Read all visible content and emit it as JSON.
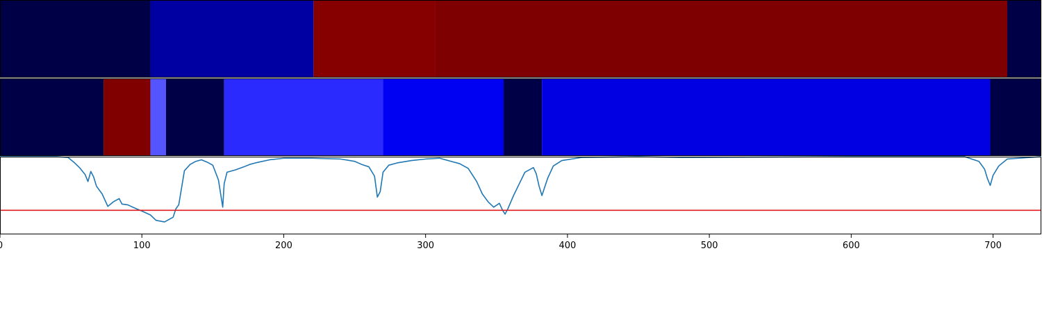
{
  "chart_data": {
    "type": "heatmap",
    "title": "",
    "xlabel": "",
    "ylabel": "",
    "xlim": [
      0,
      734
    ],
    "xticks": [
      0,
      100,
      200,
      300,
      400,
      500,
      600,
      700
    ],
    "tick_labels": [
      "0",
      "100",
      "200",
      "300",
      "400",
      "500",
      "600",
      "700"
    ],
    "segment_tracks": [
      {
        "segments": [
          {
            "start": 0,
            "end": 106,
            "color": "#000046"
          },
          {
            "start": 106,
            "end": 221,
            "color": "#0000a2"
          },
          {
            "start": 221,
            "end": 307,
            "color": "#870000"
          },
          {
            "start": 307,
            "end": 710,
            "color": "#7f0000"
          },
          {
            "start": 710,
            "end": 734,
            "color": "#000046"
          }
        ]
      },
      {
        "segments": [
          {
            "start": 0,
            "end": 73,
            "color": "#000046"
          },
          {
            "start": 73,
            "end": 106,
            "color": "#800000"
          },
          {
            "start": 106,
            "end": 117,
            "color": "#5555ff"
          },
          {
            "start": 117,
            "end": 158,
            "color": "#000046"
          },
          {
            "start": 158,
            "end": 270,
            "color": "#2a2aff"
          },
          {
            "start": 270,
            "end": 355,
            "color": "#0000f2"
          },
          {
            "start": 355,
            "end": 382,
            "color": "#000046"
          },
          {
            "start": 382,
            "end": 698,
            "color": "#0000e2"
          },
          {
            "start": 698,
            "end": 734,
            "color": "#000046"
          }
        ]
      }
    ],
    "line_series": {
      "color": "#1f77b4",
      "ylim": [
        0,
        1
      ],
      "threshold": 0.31,
      "threshold_color": "#e31a1c",
      "x": [
        0,
        20,
        40,
        48,
        52,
        56,
        60,
        62,
        64,
        66,
        68,
        72,
        76,
        80,
        84,
        86,
        90,
        96,
        100,
        106,
        110,
        116,
        122,
        124,
        126,
        130,
        134,
        138,
        142,
        146,
        150,
        154,
        157,
        158,
        160,
        166,
        172,
        176,
        180,
        190,
        200,
        220,
        240,
        250,
        255,
        260,
        264,
        266,
        268,
        270,
        274,
        280,
        290,
        300,
        310,
        318,
        324,
        330,
        336,
        340,
        344,
        348,
        352,
        354,
        356,
        358,
        362,
        366,
        370,
        374,
        376,
        378,
        380,
        382,
        386,
        390,
        396,
        410,
        450,
        480,
        600,
        680,
        690,
        694,
        696,
        698,
        700,
        704,
        710,
        734
      ],
      "y": [
        1.0,
        1.0,
        1.0,
        0.99,
        0.93,
        0.86,
        0.77,
        0.68,
        0.81,
        0.74,
        0.62,
        0.52,
        0.36,
        0.42,
        0.46,
        0.39,
        0.38,
        0.33,
        0.3,
        0.25,
        0.18,
        0.16,
        0.22,
        0.33,
        0.38,
        0.82,
        0.9,
        0.94,
        0.96,
        0.93,
        0.89,
        0.7,
        0.35,
        0.65,
        0.8,
        0.83,
        0.87,
        0.9,
        0.92,
        0.96,
        0.98,
        0.98,
        0.97,
        0.94,
        0.9,
        0.87,
        0.75,
        0.48,
        0.55,
        0.8,
        0.89,
        0.92,
        0.95,
        0.97,
        0.98,
        0.94,
        0.91,
        0.85,
        0.68,
        0.52,
        0.42,
        0.35,
        0.4,
        0.32,
        0.26,
        0.33,
        0.5,
        0.65,
        0.8,
        0.84,
        0.86,
        0.78,
        0.62,
        0.5,
        0.72,
        0.88,
        0.95,
        0.99,
        1.0,
        0.99,
        1.0,
        1.0,
        0.94,
        0.84,
        0.72,
        0.63,
        0.76,
        0.88,
        0.97,
        1.0
      ]
    }
  }
}
